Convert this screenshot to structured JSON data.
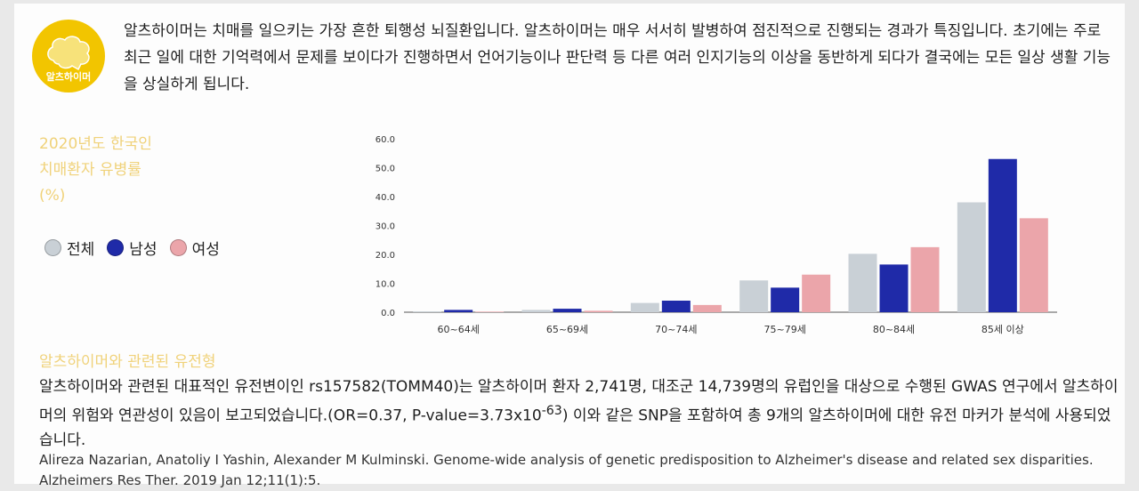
{
  "badge": {
    "label": "알츠하이머",
    "color": "#f2c500"
  },
  "intro_text": "알츠하이머는 치매를 일으키는 가장 흔한 퇴행성 뇌질환입니다. 알츠하이머는 매우 서서히 발병하여 점진적으로 진행되는 경과가 특징입니다. 초기에는 주로 최근 일에 대한 기억력에서 문제를 보이다가 진행하면서 언어기능이나 판단력 등 다른 여러 인지기능의 이상을 동반하게 되다가 결국에는 모든 일상 생활 기능을 상실하게 됩니다.",
  "chart_title_lines": [
    "2020년도 한국인",
    "치매환자 유병률",
    "(%)"
  ],
  "legend": [
    {
      "name": "전체",
      "color": "#c9d0d6"
    },
    {
      "name": "남성",
      "color": "#1f2aa8"
    },
    {
      "name": "여성",
      "color": "#eba5aa"
    }
  ],
  "chart_data": {
    "type": "bar",
    "title": "2020년도 한국인 치매환자 유병률 (%)",
    "categories": [
      "60~64세",
      "65~69세",
      "70~74세",
      "75~79세",
      "80~84세",
      "85세 이상"
    ],
    "series": [
      {
        "name": "전체",
        "color": "#c9d0d6",
        "values": [
          0.3,
          0.8,
          3.2,
          11.0,
          20.2,
          38.0
        ]
      },
      {
        "name": "남성",
        "color": "#1f2aa8",
        "values": [
          0.8,
          1.2,
          4.0,
          8.5,
          16.5,
          53.0
        ]
      },
      {
        "name": "여성",
        "color": "#eba5aa",
        "values": [
          0.2,
          0.5,
          2.5,
          13.0,
          22.5,
          32.5
        ]
      }
    ],
    "yticks": [
      "0.0",
      "10.0",
      "20.0",
      "30.0",
      "40.0",
      "50.0",
      "60.0"
    ],
    "ylim": [
      0,
      60
    ],
    "grid": false,
    "legend_position": "left"
  },
  "section_title": "알츠하이머와 관련된 유전형",
  "body_text_pre": "알츠하이머와 관련된 대표적인 유전변이인 rs157582(TOMM40)는 알츠하이머 환자 2,741명, 대조군 14,739명의 유럽인을 대상으로 수행된 GWAS 연구에서 알츠하이머의 위험와 연관성이 있음이 보고되었습니다.(OR=0.37, P-value=3.73x10",
  "body_text_exp": "-63",
  "body_text_post": ") 이와 같은 SNP을 포함하여 총 9개의 알츠하이머에 대한 유전 마커가 분석에 사용되었습니다.",
  "citation": "Alireza Nazarian, Anatoliy I Yashin, Alexander M Kulminski. Genome-wide analysis of genetic predisposition to Alzheimer's disease and related sex disparities. Alzheimers Res Ther. 2019 Jan 12;11(1):5."
}
